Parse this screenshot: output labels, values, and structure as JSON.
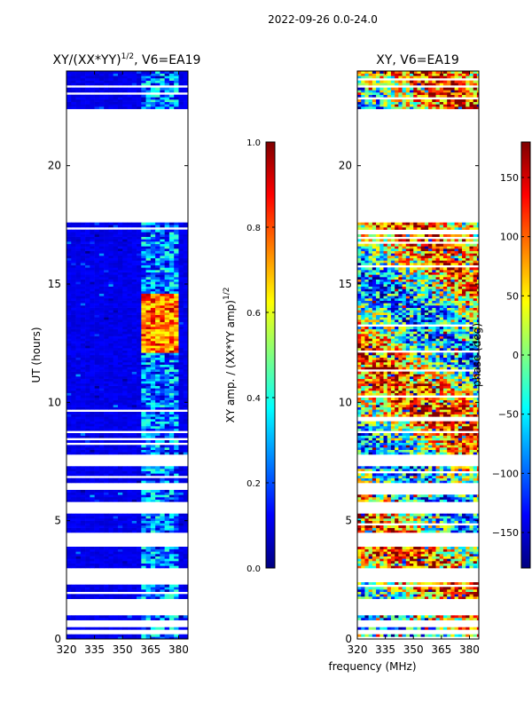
{
  "suptitle": "2022-09-26 0.0-24.0",
  "shared_xlabel": "frequency (MHz)",
  "chart_data": [
    {
      "type": "heatmap",
      "title_prefix": "XY/(XX*YY)",
      "title_exponent": "1/2",
      "title_suffix": ", V6=EA19",
      "xlabel": "",
      "ylabel": "UT (hours)",
      "xlim": [
        320,
        385
      ],
      "ylim": [
        0,
        24
      ],
      "xticks": [
        320,
        335,
        350,
        365,
        380
      ],
      "yticks": [
        0,
        5,
        10,
        15,
        20
      ],
      "colormap": "jet",
      "colorbar": {
        "label_prefix": "XY amp. / (XX*YY amp)",
        "label_exponent": "1/2",
        "range": [
          0.0,
          1.0
        ],
        "ticks": [
          "0.0",
          "0.2",
          "0.4",
          "0.6",
          "0.8",
          "1.0"
        ],
        "tick_values": [
          0.0,
          0.2,
          0.4,
          0.6,
          0.8,
          1.0
        ]
      },
      "data_gaps_hours": [
        [
          0.2,
          0.4
        ],
        [
          0.55,
          0.8
        ],
        [
          1.0,
          1.7
        ],
        [
          2.4,
          3.0
        ],
        [
          3.9,
          4.5
        ],
        [
          5.3,
          5.8
        ],
        [
          6.3,
          6.6
        ],
        [
          7.3,
          7.8
        ],
        [
          17.6,
          22.4
        ]
      ],
      "high_value_channels_MHz": [
        [
          360,
          364
        ],
        [
          365,
          369
        ],
        [
          370,
          374
        ],
        [
          375,
          379
        ]
      ],
      "high_value_hours": [
        12.0,
        14.5
      ]
    },
    {
      "type": "heatmap",
      "title": "XY, V6=EA19",
      "xlabel": "",
      "ylabel": "",
      "xlim": [
        320,
        385
      ],
      "ylim": [
        0,
        24
      ],
      "xticks": [
        320,
        335,
        350,
        365,
        380
      ],
      "yticks": [
        0,
        5,
        10,
        15,
        20
      ],
      "colormap": "jet",
      "colorbar": {
        "label": "phase (deg)",
        "range": [
          -180,
          180
        ],
        "ticks": [
          "−150",
          "−100",
          "−50",
          "0",
          "50",
          "100",
          "150"
        ],
        "tick_values": [
          -150,
          -100,
          -50,
          0,
          50,
          100,
          150
        ]
      },
      "data_gaps_hours": [
        [
          0.2,
          0.4
        ],
        [
          0.55,
          0.8
        ],
        [
          1.0,
          1.7
        ],
        [
          2.4,
          3.0
        ],
        [
          3.9,
          4.5
        ],
        [
          5.3,
          5.8
        ],
        [
          6.3,
          6.6
        ],
        [
          7.3,
          7.8
        ],
        [
          17.6,
          22.4
        ]
      ]
    }
  ]
}
